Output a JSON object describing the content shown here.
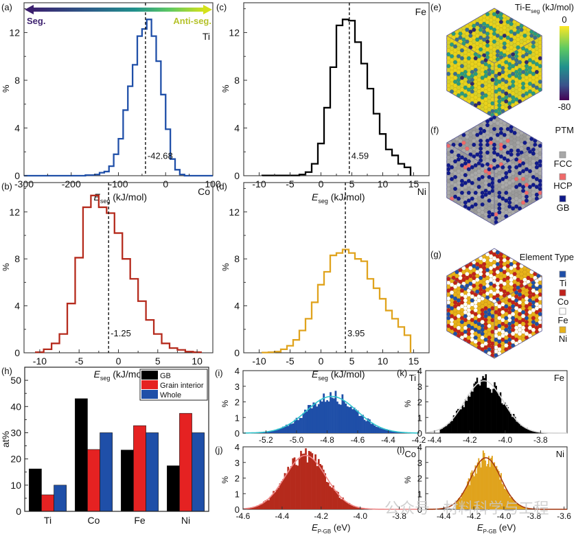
{
  "chart_data": [
    {
      "id": "a",
      "panel_label": "(a)",
      "type": "bar",
      "style": "step-histogram",
      "element": "Ti",
      "color": "#1f4fa8",
      "xlabel_main": "E",
      "xlabel_sub": "seg",
      "xlabel_unit": " (kJ/mol)",
      "ylabel": "%",
      "xlim": [
        -300,
        100
      ],
      "ylim": [
        0,
        14.5
      ],
      "xticks": [
        -300,
        -200,
        -100,
        0,
        100
      ],
      "xtick_labels": [
        "-300",
        "-200",
        "-100",
        "0",
        "100"
      ],
      "yticks": [
        0,
        4,
        8,
        12
      ],
      "ytick_labels": [
        "0",
        "4",
        "8",
        "12"
      ],
      "bin_edges": [
        -300,
        -290,
        -280,
        -270,
        -260,
        -250,
        -240,
        -230,
        -220,
        -210,
        -200,
        -190,
        -180,
        -170,
        -160,
        -150,
        -140,
        -130,
        -120,
        -110,
        -100,
        -90,
        -80,
        -70,
        -60,
        -50,
        -40,
        -30,
        -20,
        -10,
        0,
        10,
        20,
        30,
        40,
        50,
        60,
        70,
        80,
        90,
        100
      ],
      "values": [
        0,
        0,
        0,
        0,
        0,
        0,
        0,
        0,
        0,
        0,
        0,
        0,
        0,
        0.05,
        0.05,
        0.1,
        0.25,
        0.35,
        0.8,
        1.8,
        3.1,
        5.5,
        7.5,
        9.3,
        11.7,
        12.3,
        13.1,
        11.7,
        9.6,
        6.8,
        3.9,
        1.4,
        0.5,
        0.1,
        0,
        0,
        0,
        0,
        0,
        0
      ],
      "mean": -42.68,
      "mean_label": "-42.68",
      "arrow": {
        "left_label": "Seg.",
        "right_label": "Anti-seg.",
        "left_color": "#3b1f6e",
        "right_color": "#b5c22a"
      }
    },
    {
      "id": "b",
      "panel_label": "(b)",
      "type": "bar",
      "style": "step-histogram",
      "element": "Co",
      "color": "#b52a1c",
      "xlabel_main": "E",
      "xlabel_sub": "seg",
      "xlabel_unit": " (kJ/mol)",
      "ylabel": "%",
      "xlim": [
        -12,
        12
      ],
      "ylim": [
        0,
        14.5
      ],
      "xticks": [
        -10,
        -5,
        0,
        5,
        10
      ],
      "xtick_labels": [
        "-10",
        "-5",
        "0",
        "5",
        "10"
      ],
      "yticks": [
        0,
        4,
        8,
        12
      ],
      "ytick_labels": [
        "0",
        "4",
        "8",
        "12"
      ],
      "bin_edges": [
        -10.5,
        -9.5,
        -8.5,
        -7.5,
        -6.5,
        -5.5,
        -4.5,
        -3.5,
        -2.5,
        -1.5,
        -0.5,
        0.5,
        1.5,
        2.5,
        3.5,
        4.5,
        5.5,
        6.5,
        7.5,
        8.5,
        9.5,
        10.5
      ],
      "values": [
        0.05,
        0.3,
        0.8,
        1.6,
        4.2,
        8.1,
        12.4,
        13.4,
        12.4,
        11.9,
        10.2,
        8.0,
        6.3,
        4.4,
        2.8,
        1.6,
        0.8,
        0.4,
        0.25,
        0.1,
        0.05
      ],
      "mean": -1.25,
      "mean_label": "-1.25"
    },
    {
      "id": "c",
      "panel_label": "(c)",
      "type": "bar",
      "style": "step-histogram",
      "element": "Fe",
      "color": "#000000",
      "xlabel_main": "E",
      "xlabel_sub": "seg",
      "xlabel_unit": " (kJ/mol)",
      "ylabel": "%",
      "xlim": [
        -12.5,
        17.5
      ],
      "ylim": [
        0,
        14.5
      ],
      "xticks": [
        -10,
        -5,
        0,
        5,
        10,
        15
      ],
      "xtick_labels": [
        "-10",
        "-5",
        "0",
        "5",
        "10",
        "15"
      ],
      "yticks": [
        0,
        4,
        8,
        12
      ],
      "ytick_labels": [
        "0",
        "4",
        "8",
        "12"
      ],
      "bin_edges": [
        -9.5,
        -8.5,
        -7.5,
        -6.5,
        -5.5,
        -4.5,
        -3.5,
        -2.5,
        -1.5,
        -0.5,
        0.5,
        1.5,
        2.5,
        3.5,
        4.5,
        5.5,
        6.5,
        7.5,
        8.5,
        9.5,
        10.5,
        11.5,
        12.5,
        13.5,
        14.5
      ],
      "values": [
        0.02,
        0.02,
        0.02,
        0.02,
        0.02,
        0.02,
        0.1,
        0.3,
        1.0,
        2.7,
        5.7,
        9.1,
        12.6,
        13.1,
        13.0,
        11.2,
        9.4,
        7.3,
        5.2,
        3.5,
        2.2,
        1.7,
        1.0,
        0.7
      ],
      "mean": 4.59,
      "mean_label": "4.59"
    },
    {
      "id": "d",
      "panel_label": "(d)",
      "type": "bar",
      "style": "step-histogram",
      "element": "Ni",
      "color": "#e0a31d",
      "xlabel_main": "E",
      "xlabel_sub": "seg",
      "xlabel_unit": " (kJ/mol)",
      "ylabel": "%",
      "xlim": [
        -12.5,
        17.5
      ],
      "ylim": [
        0,
        14.5
      ],
      "xticks": [
        -10,
        -5,
        0,
        5,
        10,
        15
      ],
      "xtick_labels": [
        "-10",
        "-5",
        "0",
        "5",
        "10",
        "15"
      ],
      "yticks": [
        0,
        4,
        8,
        12
      ],
      "ytick_labels": [
        "0",
        "4",
        "8",
        "12"
      ],
      "bin_edges": [
        -9.5,
        -8.5,
        -7.5,
        -6.5,
        -5.5,
        -4.5,
        -3.5,
        -2.5,
        -1.5,
        -0.5,
        0.5,
        1.5,
        2.5,
        3.5,
        4.5,
        5.5,
        6.5,
        7.5,
        8.5,
        9.5,
        10.5,
        11.5,
        12.5,
        13.5,
        14.5
      ],
      "values": [
        0.02,
        0.05,
        0.1,
        0.3,
        0.6,
        1.1,
        1.9,
        2.9,
        4.3,
        5.8,
        6.9,
        8.3,
        8.5,
        8.8,
        8.5,
        8.0,
        7.8,
        6.3,
        5.5,
        4.6,
        3.6,
        2.9,
        2.2,
        1.5
      ],
      "mean": 3.95,
      "mean_label": "3.95"
    },
    {
      "id": "h",
      "panel_label": "(h)",
      "type": "bar",
      "style": "grouped-bar",
      "categories": [
        "Ti",
        "Co",
        "Fe",
        "Ni"
      ],
      "series": [
        {
          "name": "GB",
          "color": "#000000",
          "values": [
            16.2,
            43.0,
            23.4,
            17.4
          ]
        },
        {
          "name": "Grain interior",
          "color": "#e52222",
          "values": [
            6.3,
            23.6,
            32.7,
            37.4
          ]
        },
        {
          "name": "Whole",
          "color": "#1f4fa8",
          "values": [
            10.0,
            30.0,
            30.0,
            30.0
          ]
        }
      ],
      "ylabel": "at%",
      "xlabel": "",
      "ylim": [
        0,
        55
      ],
      "yticks": [
        0,
        10,
        20,
        30,
        40,
        50
      ],
      "ytick_labels": [
        "0",
        "10",
        "20",
        "30",
        "40",
        "50"
      ],
      "legend_position": "top-right"
    },
    {
      "id": "i",
      "panel_label": "(i)",
      "type": "bar",
      "style": "filled-histogram-with-fit",
      "element": "Ti",
      "color": "#1f4fa8",
      "fit_color": "#2fc4cc",
      "xlim": [
        -5.35,
        -4.2
      ],
      "ylim": [
        0,
        4
      ],
      "xticks": [
        -5.2,
        -5.0,
        -4.8,
        -4.6,
        -4.4,
        -4.2
      ],
      "xtick_labels": [
        "-5.2",
        "-5.0",
        "-4.8",
        "-4.6",
        "-4.4",
        "-4.2"
      ],
      "yticks": [
        0,
        1,
        2,
        3,
        4
      ],
      "ytick_labels": [
        "0",
        "1",
        "2",
        "3",
        "4"
      ],
      "ylabel": "%",
      "fit": {
        "mu": -4.77,
        "sigma": 0.165,
        "peak": 2.35
      },
      "hist_range": [
        -5.25,
        -4.25
      ],
      "bin_count": 90,
      "noise_amplitude": 0.35
    },
    {
      "id": "j",
      "panel_label": "(j)",
      "type": "bar",
      "style": "filled-histogram-with-fit",
      "element": "Co",
      "color": "#b52a1c",
      "fit_color": "#f08a8a",
      "xlim": [
        -4.6,
        -3.7
      ],
      "ylim": [
        0,
        4
      ],
      "xticks": [
        -4.6,
        -4.4,
        -4.2,
        -4.0,
        -3.8
      ],
      "xtick_labels": [
        "-4.6",
        "-4.4",
        "-4.2",
        "-4.0",
        "-3.8"
      ],
      "yticks": [
        0,
        1,
        2,
        3,
        4
      ],
      "ytick_labels": [
        "0",
        "1",
        "2",
        "3",
        "4"
      ],
      "ylabel": "%",
      "xlabel_main": "E",
      "xlabel_sub": "P-GB",
      "xlabel_unit": " (eV)",
      "fit": {
        "mu": -4.28,
        "sigma": 0.105,
        "peak": 3.45
      },
      "hist_range": [
        -4.58,
        -3.92
      ],
      "bin_count": 80,
      "noise_amplitude": 0.3
    },
    {
      "id": "k",
      "panel_label": "(k)",
      "type": "bar",
      "style": "filled-histogram-with-fit",
      "element": "Fe",
      "color": "#000000",
      "fit_color": "#d8d8d8",
      "xlim": [
        -4.45,
        -3.65
      ],
      "ylim": [
        0,
        4
      ],
      "xticks": [
        -4.4,
        -4.2,
        -4.0,
        -3.8
      ],
      "xtick_labels": [
        "-4.4",
        "-4.2",
        "-4.0",
        "-3.8"
      ],
      "yticks": [
        0,
        1,
        2,
        3,
        4
      ],
      "ytick_labels": [
        "0",
        "1",
        "2",
        "3",
        "4"
      ],
      "ylabel": "%",
      "fit": {
        "mu": -4.12,
        "sigma": 0.11,
        "peak": 3.35
      },
      "hist_range": [
        -4.37,
        -3.75
      ],
      "bin_count": 75,
      "noise_amplitude": 0.35
    },
    {
      "id": "l",
      "panel_label": "(l)",
      "type": "bar",
      "style": "filled-histogram-with-fit",
      "element": "Ni",
      "color": "#e0a31d",
      "fit_color": "#a63a12",
      "xlim": [
        -4.52,
        -3.58
      ],
      "ylim": [
        0,
        4
      ],
      "xticks": [
        -4.4,
        -4.2,
        -4.0,
        -3.8,
        -3.6
      ],
      "xtick_labels": [
        "-4.4",
        "-4.2",
        "-4.0",
        "-3.8",
        "-3.6"
      ],
      "yticks": [
        0,
        1,
        2,
        3,
        4
      ],
      "ytick_labels": [
        "0",
        "1",
        "2",
        "3",
        "4"
      ],
      "ylabel": "%",
      "xlabel_main": "E",
      "xlabel_sub": "P-GB",
      "xlabel_unit": " (eV)",
      "fit": {
        "mu": -4.12,
        "sigma": 0.1,
        "peak": 3.3
      },
      "hist_range": [
        -4.32,
        -3.8
      ],
      "bin_count": 70,
      "noise_amplitude": 0.35
    }
  ],
  "atomistic_panels": [
    {
      "id": "e",
      "panel_label": "(e)",
      "title_main": "Ti-E",
      "title_sub": "seg",
      "title_unit": " (kJ/mol)",
      "colorbar": {
        "max_label": "0",
        "min_label": "-80",
        "colors": [
          "#fde725",
          "#5ec962",
          "#21918c",
          "#3b528b",
          "#440154"
        ]
      }
    },
    {
      "id": "f",
      "panel_label": "(f)",
      "title": "PTM",
      "legend": [
        {
          "label": "FCC",
          "color": "#a8a8a8"
        },
        {
          "label": "HCP",
          "color": "#f06a6a"
        },
        {
          "label": "GB",
          "color": "#101a8a"
        }
      ]
    },
    {
      "id": "g",
      "panel_label": "(g)",
      "title": "Element Type",
      "legend": [
        {
          "label": "Ti",
          "color": "#1f4fa8"
        },
        {
          "label": "Co",
          "color": "#c0221c"
        },
        {
          "label": "Fe",
          "color": "#ffffff"
        },
        {
          "label": "Ni",
          "color": "#e8b21a"
        }
      ]
    }
  ],
  "watermark": "公众号 · 材料科学与工程"
}
